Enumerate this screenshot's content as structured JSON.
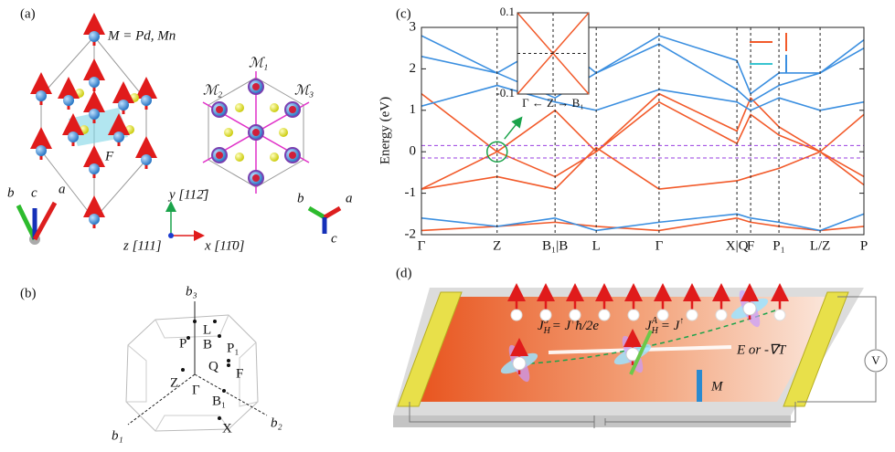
{
  "panel_a": {
    "label": "(a)",
    "formula": "M = Pd, Mn",
    "site": "F",
    "triad_left": [
      "b",
      "c",
      "a"
    ],
    "y_axis": "y [112̄]",
    "z_axis": "z [111]",
    "x_axis": "x [11̄0]",
    "mirrors": [
      "ℳ₁",
      "ℳ₂",
      "ℳ₃"
    ],
    "triad_right": [
      "b",
      "a",
      "c"
    ]
  },
  "panel_b": {
    "label": "(b)",
    "points": [
      "b₃",
      "L",
      "P",
      "B",
      "P₁",
      "Q",
      "F",
      "Z",
      "B₁",
      "Γ",
      "X",
      "b₁",
      "b₂"
    ]
  },
  "chart_data": {
    "type": "line",
    "panel_label": "(c)",
    "ylabel": "Energy (eV)",
    "x": [
      0,
      17.1,
      30.2,
      39.5,
      53.7,
      71.3,
      74.4,
      80.8,
      90.1,
      100
    ],
    "xlim": [
      0,
      100
    ],
    "xticks": [
      {
        "value": 0,
        "label": "Γ"
      },
      {
        "value": 17.1,
        "label": "Z"
      },
      {
        "value": 30.2,
        "label": "B₁|B"
      },
      {
        "value": 39.5,
        "label": "L"
      },
      {
        "value": 53.7,
        "label": "Γ"
      },
      {
        "value": 71.3,
        "label": "X|Q"
      },
      {
        "value": 74.4,
        "label": "F"
      },
      {
        "value": 80.8,
        "label": "P₁"
      },
      {
        "value": 90.1,
        "label": "L/Z"
      },
      {
        "value": 100,
        "label": "P"
      }
    ],
    "ylim": [
      -2,
      3
    ],
    "yticks": [
      -2,
      -1,
      0,
      1,
      2,
      3
    ],
    "hlines": [
      0.15,
      -0.15
    ],
    "series": [
      {
        "color": "#f25a2a",
        "values": [
          1.4,
          0,
          1.0,
          0,
          1.4,
          0.5,
          1.3,
          0.6,
          0,
          0.9
        ]
      },
      {
        "color": "#f25a2a",
        "values": [
          -0.9,
          0,
          -0.6,
          0,
          1.2,
          0.2,
          0.9,
          0.4,
          0,
          -0.6
        ]
      },
      {
        "color": "#f25a2a",
        "values": [
          -0.9,
          -0.6,
          -0.9,
          0.1,
          -0.9,
          -0.7,
          -0.6,
          -0.4,
          0,
          -0.8
        ]
      },
      {
        "color": "#f25a2a",
        "values": [
          -1.9,
          -1.8,
          -1.7,
          -1.8,
          -1.9,
          -1.6,
          -1.7,
          -1.8,
          -1.9,
          -1.8
        ]
      },
      {
        "color": "#3b8fe0",
        "values": [
          2.8,
          1.9,
          2.7,
          1.9,
          2.8,
          2.2,
          1.4,
          1.9,
          1.9,
          2.5
        ]
      },
      {
        "color": "#3b8fe0",
        "values": [
          2.3,
          1.9,
          1.3,
          1.9,
          2.6,
          1.5,
          1.2,
          1.6,
          1.9,
          2.7
        ]
      },
      {
        "color": "#3b8fe0",
        "values": [
          1.1,
          1.6,
          1.2,
          1.0,
          1.5,
          1.2,
          1.0,
          1.3,
          1.0,
          1.2
        ]
      },
      {
        "color": "#3b8fe0",
        "values": [
          -1.6,
          -1.8,
          -1.6,
          -1.9,
          -1.7,
          -1.5,
          -1.6,
          -1.7,
          -1.9,
          -1.5
        ]
      }
    ],
    "inset": {
      "ylim": [
        -0.1,
        0.1
      ],
      "yticks": [
        -0.1,
        0.1
      ],
      "xlabel": "Γ ← Z → B₁"
    }
  },
  "panel_d": {
    "label": "(d)",
    "eq1": {
      "J": "J",
      "sub": "H",
      "sup": "S",
      "rest": " = J",
      "spin": "↑",
      "tail": "ħ/2e"
    },
    "eq2": {
      "J": "J",
      "sub": "H",
      "sup": "A",
      "rest": " = J",
      "spin": "↑"
    },
    "field": "E or -∇T",
    "magnet": "M",
    "meter": "V"
  }
}
